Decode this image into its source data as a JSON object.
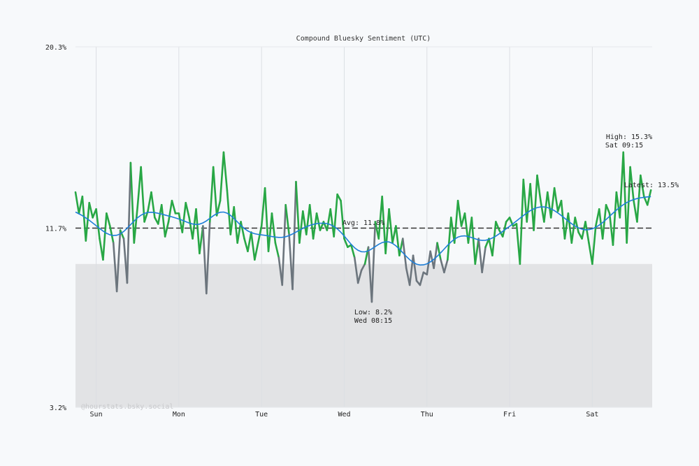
{
  "chart_data": {
    "type": "line",
    "title": "Compound Bluesky Sentiment (UTC)",
    "xlabel": "",
    "ylabel": "",
    "ylim": [
      3.2,
      20.3
    ],
    "y_ticks": [
      "20.3%",
      "11.7%",
      "3.2%"
    ],
    "y_tick_values": [
      20.3,
      11.7,
      3.2
    ],
    "x_tick_labels": [
      "Sun",
      "Mon",
      "Tue",
      "Wed",
      "Thu",
      "Fri",
      "Sat"
    ],
    "x_start": "Sat 18:00",
    "x_interval": "1 hour",
    "grid": true,
    "low_band_threshold": 10.0,
    "average": 11.8,
    "series": [
      {
        "values": [
          13.4,
          12.4,
          13.2,
          11.1,
          12.9,
          12.2,
          12.6,
          11.2,
          10.2,
          12.4,
          11.8,
          11.0,
          8.7,
          11.6,
          11.2,
          9.1,
          14.8,
          11.0,
          12.7,
          14.6,
          12.0,
          12.5,
          13.4,
          12.2,
          11.9,
          12.8,
          11.3,
          12.0,
          13.0,
          12.4,
          12.4,
          11.5,
          12.9,
          12.2,
          11.2,
          12.6,
          10.5,
          11.8,
          8.6,
          12.0,
          14.6,
          12.3,
          13.0,
          15.3,
          13.5,
          11.4,
          12.7,
          11.0,
          12.0,
          11.2,
          10.6,
          11.5,
          10.2,
          11.0,
          11.8,
          13.6,
          10.6,
          12.4,
          11.0,
          10.3,
          9.0,
          12.8,
          11.4,
          8.8,
          13.9,
          11.0,
          12.5,
          11.4,
          12.8,
          11.2,
          12.4,
          11.6,
          12.0,
          11.6,
          12.6,
          11.3,
          13.3,
          13.0,
          11.2,
          10.8,
          10.9,
          10.3,
          9.1,
          9.7,
          10.0,
          10.8,
          8.2,
          12.0,
          11.2,
          13.2,
          10.5,
          12.6,
          11.0,
          11.8,
          10.4,
          11.2,
          9.8,
          9.0,
          10.4,
          9.2,
          9.0,
          9.6,
          9.5,
          10.6,
          9.8,
          11.0,
          10.2,
          9.6,
          10.2,
          12.2,
          11.0,
          13.0,
          11.8,
          12.4,
          11.0,
          12.2,
          10.0,
          11.2,
          9.6,
          10.8,
          11.2,
          10.4,
          12.0,
          11.6,
          11.3,
          12.0,
          12.2,
          11.8,
          11.9,
          10.0,
          14.0,
          12.0,
          13.8,
          11.6,
          14.2,
          13.0,
          12.0,
          13.4,
          12.2,
          13.6,
          12.5,
          13.0,
          11.2,
          12.4,
          11.0,
          12.2,
          11.5,
          11.2,
          12.0,
          11.0,
          10.0,
          11.8,
          12.6,
          11.2,
          12.8,
          12.4,
          10.9,
          13.4,
          12.2,
          15.3,
          11.0,
          14.6,
          13.0,
          12.0,
          14.2,
          13.2,
          12.8,
          13.5
        ]
      }
    ],
    "annotations": {
      "avg_label": "Avg: 11.8%",
      "high_label": "High: 15.3%",
      "high_time": "Sat 09:15",
      "low_label": "Low: 8.2%",
      "low_time": "Wed 08:15",
      "latest_label": "Latest: 13.5%"
    },
    "watermark": "@hourstats.bsky.social",
    "colors": {
      "line": "#28a745",
      "line_low": "#6c757d",
      "smooth": "#1e7fd8",
      "avg": "#333333",
      "band": "#e2e3e5",
      "background": "#f7f9fb"
    }
  }
}
